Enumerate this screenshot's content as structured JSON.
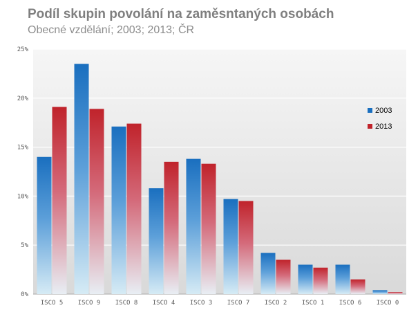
{
  "chart_data": {
    "type": "bar",
    "title": "Podíl skupin povolání na zaměsntaných osobách",
    "subtitle": "Obecné vzdělání; 2003; 2013; ČR",
    "categories": [
      "ISCO 5",
      "ISCO 9",
      "ISCO 8",
      "ISCO 4",
      "ISCO 3",
      "ISCO 7",
      "ISCO 2",
      "ISCO 1",
      "ISCO 6",
      "ISCO 0"
    ],
    "series": [
      {
        "name": "2003",
        "color": "#1a6fbf",
        "values": [
          14.0,
          23.5,
          17.1,
          10.8,
          13.8,
          9.7,
          4.2,
          3.0,
          3.0,
          0.4
        ]
      },
      {
        "name": "2013",
        "color": "#c0232b",
        "values": [
          19.1,
          18.9,
          17.4,
          13.5,
          13.3,
          9.5,
          3.5,
          2.7,
          1.5,
          0.2
        ]
      }
    ],
    "yticks": [
      "0%",
      "5%",
      "10%",
      "15%",
      "20%",
      "25%"
    ],
    "ylim": [
      0,
      25
    ],
    "grid": true,
    "legend": "right"
  }
}
